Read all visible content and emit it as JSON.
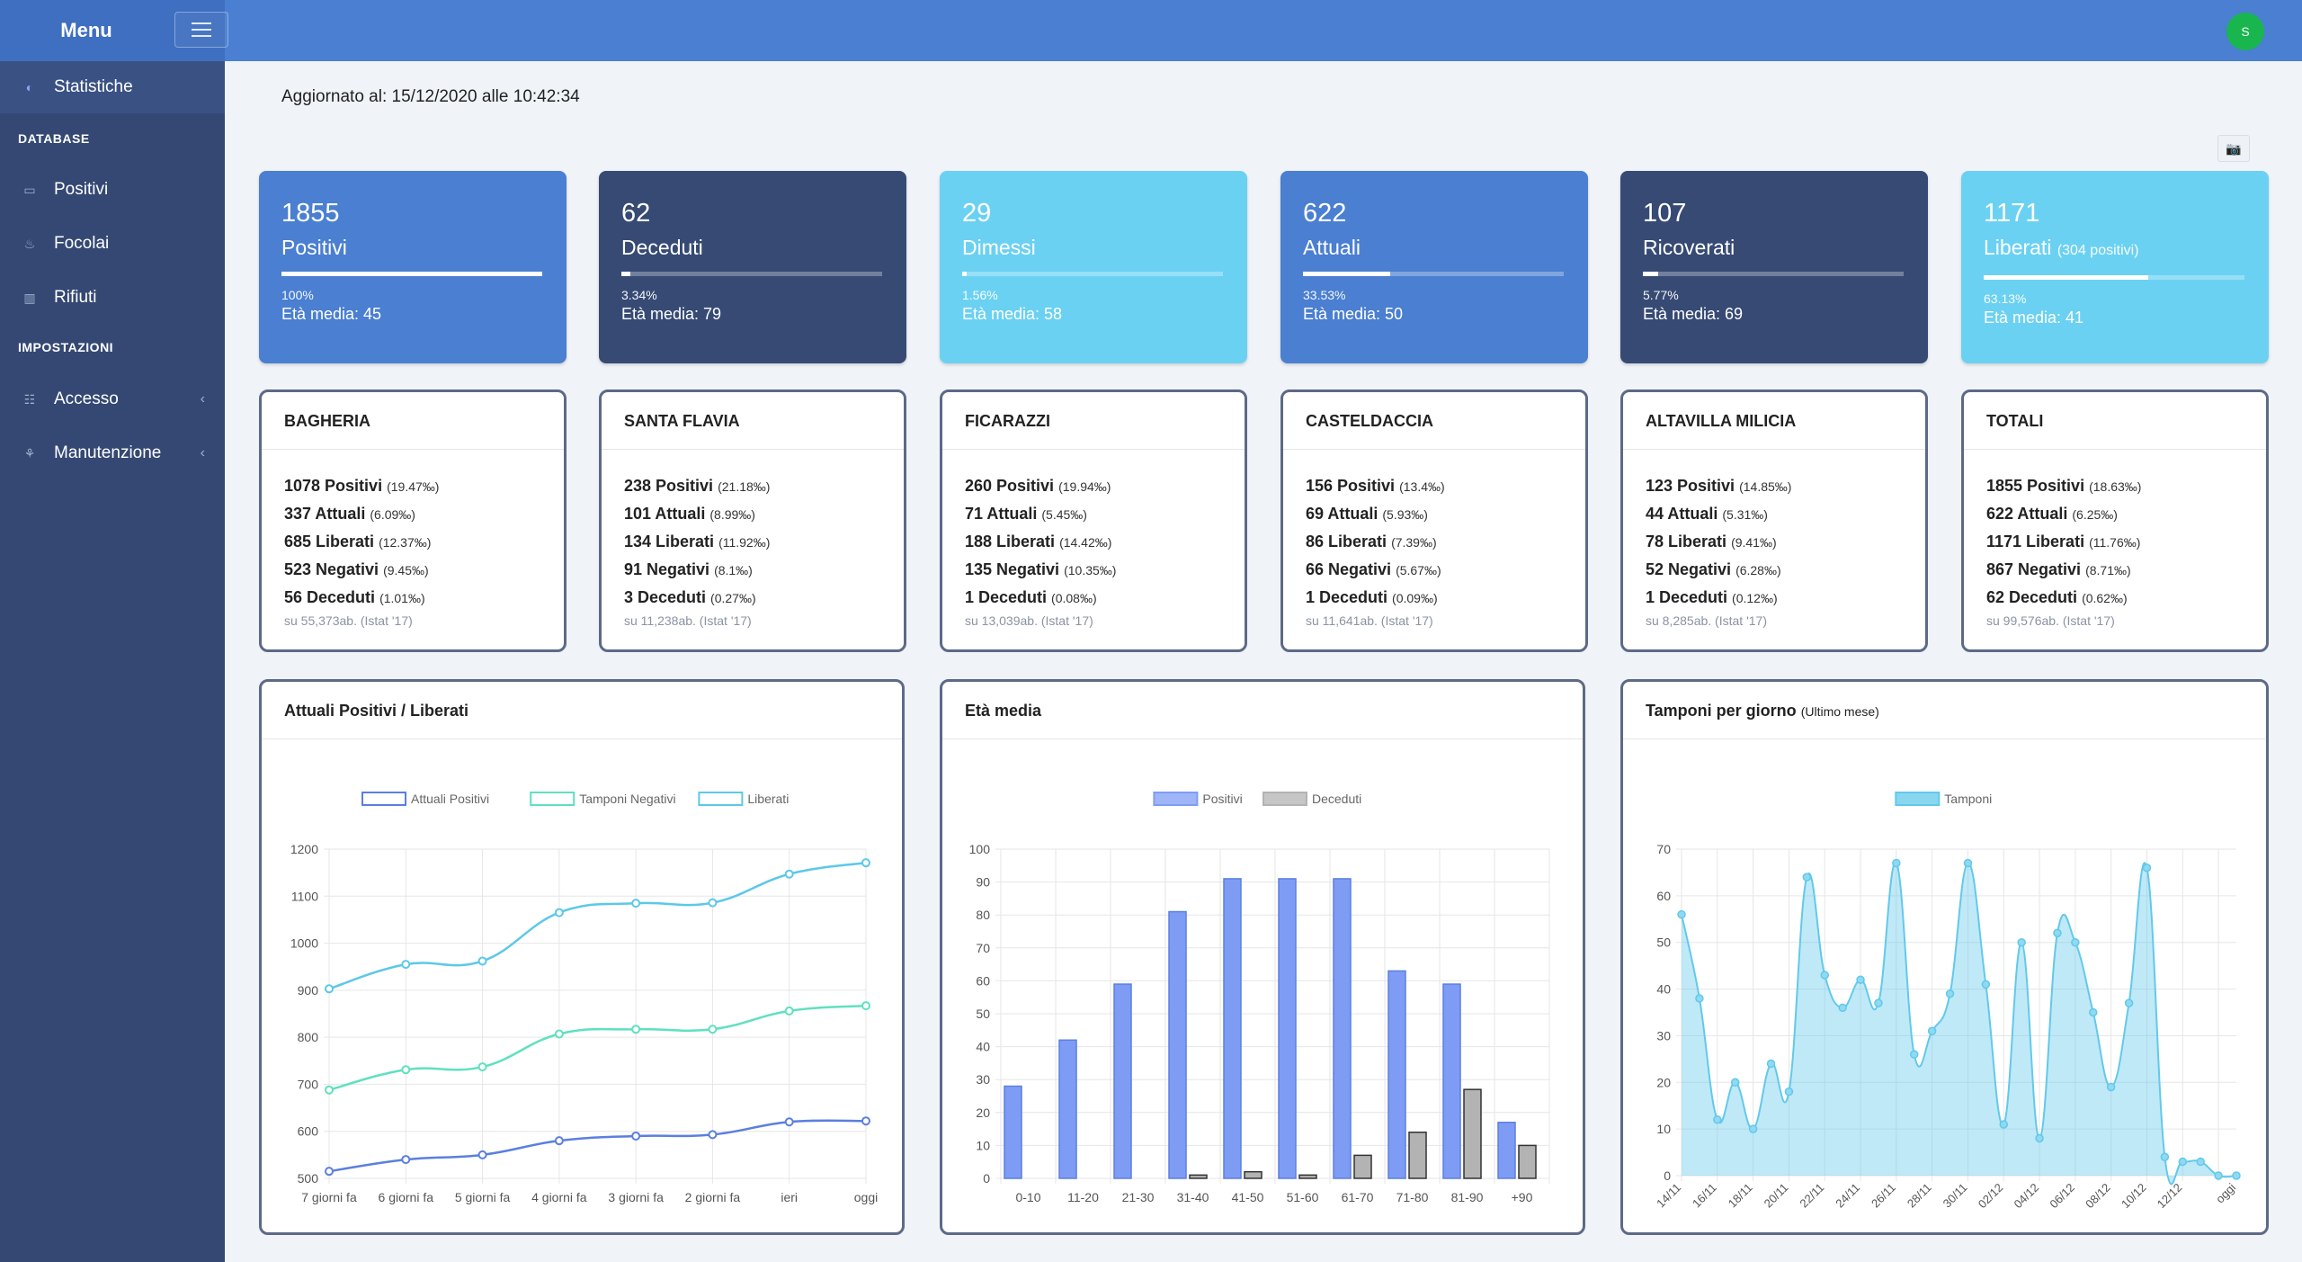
{
  "header": {
    "menu_label": "Menu",
    "avatar_initial": "S"
  },
  "sidebar": {
    "items_top": [
      {
        "label": "Statistiche",
        "icon": "dashboard-icon"
      }
    ],
    "section_database": "DATABASE",
    "database_items": [
      {
        "label": "Positivi",
        "icon": "id-card-icon"
      },
      {
        "label": "Focolai",
        "icon": "fire-icon"
      },
      {
        "label": "Rifiuti",
        "icon": "trash-icon"
      }
    ],
    "section_settings": "IMPOSTAZIONI",
    "settings_items": [
      {
        "label": "Accesso",
        "icon": "users-icon",
        "chevron": "‹"
      },
      {
        "label": "Manutenzione",
        "icon": "sitemap-icon",
        "chevron": "‹"
      }
    ]
  },
  "updated_text": "Aggiornato al: 15/12/2020 alle 10:42:34",
  "camera_icon": "📷",
  "stats": [
    {
      "number": "1855",
      "label": "Positivi",
      "sub": "",
      "progress": 100,
      "percent_text": "100%",
      "age_text": "Età media: 45",
      "color": "#4a7fd1"
    },
    {
      "number": "62",
      "label": "Deceduti",
      "sub": "",
      "progress": 3.34,
      "percent_text": "3.34%",
      "age_text": "Età media: 79",
      "color": "#364a74"
    },
    {
      "number": "29",
      "label": "Dimessi",
      "sub": "",
      "progress": 1.56,
      "percent_text": "1.56%",
      "age_text": "Età media: 58",
      "color": "#6bd1f2"
    },
    {
      "number": "622",
      "label": "Attuali",
      "sub": "",
      "progress": 33.53,
      "percent_text": "33.53%",
      "age_text": "Età media: 50",
      "color": "#4a7fd1"
    },
    {
      "number": "107",
      "label": "Ricoverati",
      "sub": "",
      "progress": 5.77,
      "percent_text": "5.77%",
      "age_text": "Età media: 69",
      "color": "#364a74"
    },
    {
      "number": "1171",
      "label": "Liberati",
      "sub": "(304 positivi)",
      "progress": 63.13,
      "percent_text": "63.13%",
      "age_text": "Età media: 41",
      "color": "#6bd1f2"
    }
  ],
  "towns": [
    {
      "name": "BAGHERIA",
      "rows": [
        {
          "value": "1078 Positivi",
          "note": "(19.47‰)"
        },
        {
          "value": "337 Attuali",
          "note": "(6.09‰)"
        },
        {
          "value": "685 Liberati",
          "note": "(12.37‰)"
        },
        {
          "value": "523 Negativi",
          "note": "(9.45‰)"
        },
        {
          "value": "56 Deceduti",
          "note": "(1.01‰)"
        }
      ],
      "footer": "su 55,373ab. (Istat '17)"
    },
    {
      "name": "SANTA FLAVIA",
      "rows": [
        {
          "value": "238 Positivi",
          "note": "(21.18‰)"
        },
        {
          "value": "101 Attuali",
          "note": "(8.99‰)"
        },
        {
          "value": "134 Liberati",
          "note": "(11.92‰)"
        },
        {
          "value": "91 Negativi",
          "note": "(8.1‰)"
        },
        {
          "value": "3 Deceduti",
          "note": "(0.27‰)"
        }
      ],
      "footer": "su 11,238ab. (Istat '17)"
    },
    {
      "name": "FICARAZZI",
      "rows": [
        {
          "value": "260 Positivi",
          "note": "(19.94‰)"
        },
        {
          "value": "71 Attuali",
          "note": "(5.45‰)"
        },
        {
          "value": "188 Liberati",
          "note": "(14.42‰)"
        },
        {
          "value": "135 Negativi",
          "note": "(10.35‰)"
        },
        {
          "value": "1 Deceduti",
          "note": "(0.08‰)"
        }
      ],
      "footer": "su 13,039ab. (Istat '17)"
    },
    {
      "name": "CASTELDACCIA",
      "rows": [
        {
          "value": "156 Positivi",
          "note": "(13.4‰)"
        },
        {
          "value": "69 Attuali",
          "note": "(5.93‰)"
        },
        {
          "value": "86 Liberati",
          "note": "(7.39‰)"
        },
        {
          "value": "66 Negativi",
          "note": "(5.67‰)"
        },
        {
          "value": "1 Deceduti",
          "note": "(0.09‰)"
        }
      ],
      "footer": "su 11,641ab. (Istat '17)"
    },
    {
      "name": "ALTAVILLA MILICIA",
      "rows": [
        {
          "value": "123 Positivi",
          "note": "(14.85‰)"
        },
        {
          "value": "44 Attuali",
          "note": "(5.31‰)"
        },
        {
          "value": "78 Liberati",
          "note": "(9.41‰)"
        },
        {
          "value": "52 Negativi",
          "note": "(6.28‰)"
        },
        {
          "value": "1 Deceduti",
          "note": "(0.12‰)"
        }
      ],
      "footer": "su 8,285ab. (Istat '17)"
    },
    {
      "name": "TOTALI",
      "rows": [
        {
          "value": "1855 Positivi",
          "note": "(18.63‰)"
        },
        {
          "value": "622 Attuali",
          "note": "(6.25‰)"
        },
        {
          "value": "1171 Liberati",
          "note": "(11.76‰)"
        },
        {
          "value": "867 Negativi",
          "note": "(8.71‰)"
        },
        {
          "value": "62 Deceduti",
          "note": "(0.62‰)"
        }
      ],
      "footer": "su 99,576ab. (Istat '17)"
    }
  ],
  "charts": {
    "line_title": "Attuali Positivi / Liberati",
    "bar_title": "Età media",
    "area_title": "Tamponi per giorno",
    "area_subtitle": "(Ultimo mese)"
  },
  "chart_data": [
    {
      "type": "line",
      "title": "Attuali Positivi / Liberati",
      "categories": [
        "7 giorni fa",
        "6 giorni fa",
        "5 giorni fa",
        "4 giorni fa",
        "3 giorni fa",
        "2 giorni fa",
        "ieri",
        "oggi"
      ],
      "ylim": [
        500,
        1200
      ],
      "yticks": [
        500,
        600,
        700,
        800,
        900,
        1000,
        1100,
        1200
      ],
      "legend": "top",
      "grid": true,
      "series": [
        {
          "name": "Attuali Positivi",
          "color": "#5b7fe0",
          "values": [
            515,
            540,
            550,
            580,
            590,
            593,
            620,
            622
          ]
        },
        {
          "name": "Tamponi Negativi",
          "color": "#5fe0c0",
          "values": [
            688,
            731,
            737,
            807,
            817,
            817,
            856,
            867
          ]
        },
        {
          "name": "Liberati",
          "color": "#5cc8e8",
          "values": [
            903,
            955,
            962,
            1065,
            1085,
            1086,
            1147,
            1171
          ]
        }
      ]
    },
    {
      "type": "bar",
      "title": "Età media",
      "categories": [
        "0-10",
        "11-20",
        "21-30",
        "31-40",
        "41-50",
        "51-60",
        "61-70",
        "71-80",
        "81-90",
        "+90"
      ],
      "ylim": [
        0,
        100
      ],
      "yticks": [
        0,
        10,
        20,
        30,
        40,
        50,
        60,
        70,
        80,
        90,
        100
      ],
      "legend": "top",
      "grid": true,
      "series": [
        {
          "name": "Positivi",
          "color": "#7f9cf5",
          "values": [
            28,
            42,
            59,
            81,
            91,
            91,
            91,
            63,
            59,
            17
          ]
        },
        {
          "name": "Deceduti",
          "color": "#b3b3b3",
          "values": [
            0,
            0,
            0,
            1,
            2,
            1,
            7,
            14,
            27,
            10
          ]
        }
      ]
    },
    {
      "type": "area",
      "title": "Tamponi per giorno",
      "x": [
        "14/11",
        "15/11",
        "16/11",
        "17/11",
        "18/11",
        "19/11",
        "20/11",
        "21/11",
        "22/11",
        "23/11",
        "24/11",
        "25/11",
        "26/11",
        "27/11",
        "28/11",
        "29/11",
        "30/11",
        "01/12",
        "02/12",
        "03/12",
        "04/12",
        "05/12",
        "06/12",
        "07/12",
        "08/12",
        "09/12",
        "10/12",
        "11/12",
        "12/12",
        "13/12",
        "14/12",
        "oggi"
      ],
      "xtick_labels": [
        "14/11",
        "16/11",
        "18/11",
        "20/11",
        "22/11",
        "24/11",
        "26/11",
        "28/11",
        "30/11",
        "02/12",
        "04/12",
        "06/12",
        "08/12",
        "10/12",
        "12/12",
        "oggi"
      ],
      "ylim": [
        0,
        70
      ],
      "yticks": [
        0,
        10,
        20,
        30,
        40,
        50,
        60,
        70
      ],
      "legend": "top",
      "grid": true,
      "series": [
        {
          "name": "Tamponi",
          "color": "#62c9ea",
          "values": [
            56,
            38,
            12,
            20,
            10,
            24,
            18,
            64,
            43,
            36,
            42,
            37,
            67,
            26,
            31,
            39,
            67,
            41,
            11,
            50,
            8,
            52,
            50,
            35,
            19,
            37,
            66,
            4,
            3,
            3,
            0,
            0
          ]
        }
      ]
    }
  ]
}
